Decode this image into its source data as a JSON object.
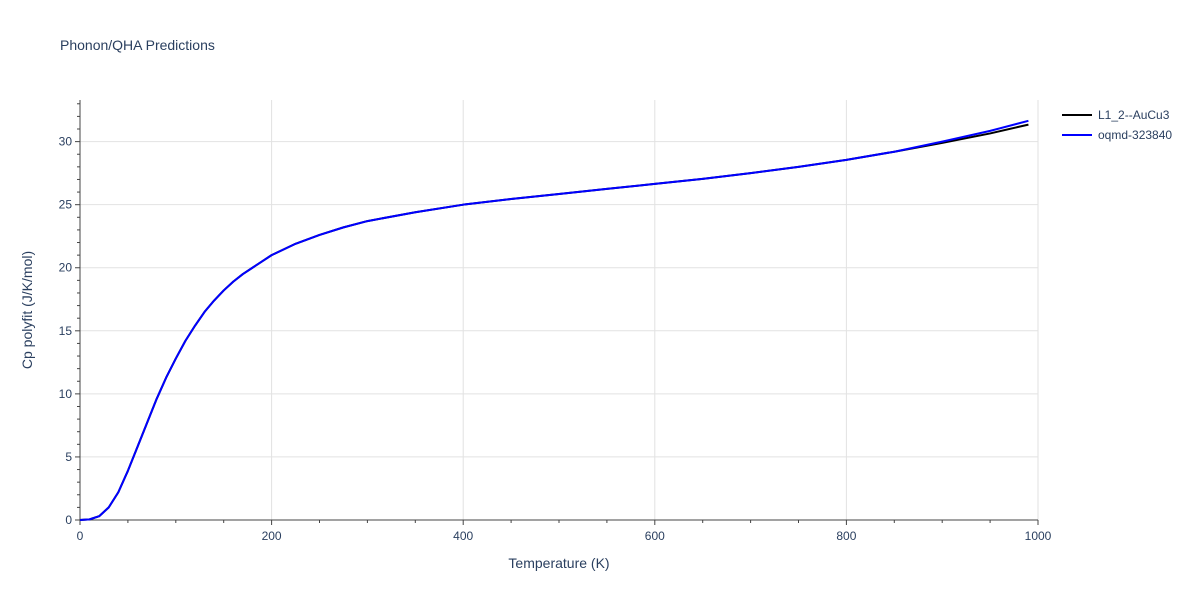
{
  "chart_data": {
    "type": "line",
    "title": "Phonon/QHA Predictions",
    "xlabel": "Temperature (K)",
    "ylabel": "Cp polyfit (J/K/mol)",
    "xlim": [
      0,
      1000
    ],
    "ylim": [
      0,
      33.3
    ],
    "x_ticks": [
      0,
      200,
      400,
      600,
      800,
      1000
    ],
    "x_tick_labels": [
      "0",
      "200",
      "400",
      "600",
      "800",
      "1000"
    ],
    "y_ticks": [
      0,
      5,
      10,
      15,
      20,
      25,
      30
    ],
    "y_tick_labels": [
      "0",
      "5",
      "10",
      "15",
      "20",
      "25",
      "30"
    ],
    "grid": true,
    "legend_position": "top-right",
    "series": [
      {
        "name": "L1_2--AuCu3",
        "color": "#000000",
        "x": [
          0,
          10,
          20,
          30,
          40,
          50,
          60,
          70,
          80,
          90,
          100,
          110,
          120,
          130,
          140,
          150,
          160,
          170,
          180,
          190,
          200,
          225,
          250,
          275,
          300,
          350,
          400,
          450,
          500,
          550,
          600,
          650,
          700,
          750,
          800,
          850,
          900,
          950,
          990
        ],
        "y": [
          0,
          0.05,
          0.3,
          1.0,
          2.2,
          3.9,
          5.8,
          7.7,
          9.6,
          11.3,
          12.8,
          14.2,
          15.4,
          16.5,
          17.4,
          18.2,
          18.9,
          19.5,
          20.0,
          20.5,
          21.0,
          21.9,
          22.6,
          23.2,
          23.7,
          24.4,
          25.0,
          25.45,
          25.85,
          26.25,
          26.65,
          27.05,
          27.5,
          28.0,
          28.55,
          29.2,
          29.9,
          30.65,
          31.35
        ]
      },
      {
        "name": "oqmd-323840",
        "color": "#0000ff",
        "x": [
          0,
          10,
          20,
          30,
          40,
          50,
          60,
          70,
          80,
          90,
          100,
          110,
          120,
          130,
          140,
          150,
          160,
          170,
          180,
          190,
          200,
          225,
          250,
          275,
          300,
          350,
          400,
          450,
          500,
          550,
          600,
          650,
          700,
          750,
          800,
          850,
          900,
          950,
          990
        ],
        "y": [
          0,
          0.05,
          0.3,
          1.0,
          2.2,
          3.9,
          5.8,
          7.7,
          9.6,
          11.3,
          12.8,
          14.2,
          15.4,
          16.5,
          17.4,
          18.2,
          18.9,
          19.5,
          20.0,
          20.5,
          21.0,
          21.9,
          22.6,
          23.2,
          23.7,
          24.4,
          25.0,
          25.45,
          25.85,
          26.25,
          26.65,
          27.05,
          27.5,
          28.0,
          28.55,
          29.2,
          30.0,
          30.85,
          31.65
        ]
      }
    ]
  }
}
